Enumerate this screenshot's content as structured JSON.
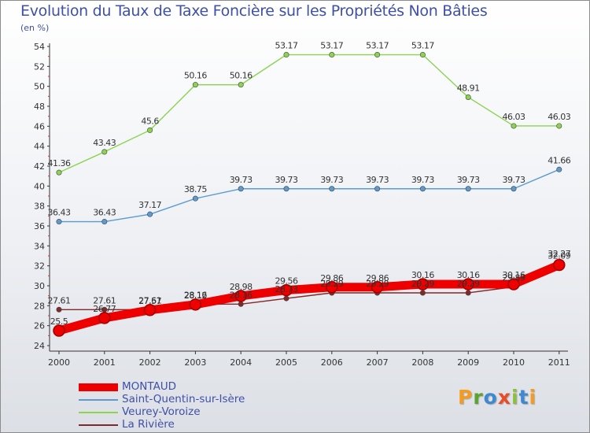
{
  "title": "Evolution du Taux de Taxe Foncière sur les Propriétés Non Bâties",
  "subtitle": "(en %)",
  "logo": {
    "text": "Proxiti",
    "letters": [
      "P",
      "r",
      "o",
      "x",
      "i",
      "t",
      "i"
    ],
    "colors": [
      "#f39c21",
      "#5aa32d",
      "#3f89cf",
      "#e94d28",
      "#8cbf3f",
      "#3f89cf",
      "#f39c21"
    ]
  },
  "chart_data": {
    "type": "line",
    "title": "Evolution du Taux de Taxe Foncière sur les Propriétés Non Bâties",
    "ylabel": "(en %)",
    "xlabel": "",
    "x": [
      "2000",
      "2001",
      "2002",
      "2003",
      "2004",
      "2005",
      "2006",
      "2007",
      "2008",
      "2009",
      "2010",
      "2011"
    ],
    "ylim": [
      24,
      54
    ],
    "yticks": [
      24,
      26,
      28,
      30,
      32,
      34,
      36,
      38,
      40,
      42,
      44,
      46,
      48,
      50,
      52,
      54
    ],
    "grid": false,
    "legend_position": "bottom-left",
    "series": [
      {
        "name": "MONTAUD",
        "color": "#ee0000",
        "values": [
          25.5,
          26.77,
          27.57,
          28.12,
          28.98,
          29.56,
          29.86,
          29.86,
          30.16,
          30.16,
          30.16,
          32.09
        ],
        "labels": [
          "25.5",
          "26.77",
          "27.57",
          "28.12",
          "28.98",
          "29.56",
          "29.86",
          "29.86",
          "30.16",
          "30.16",
          "30.16",
          "32.09"
        ]
      },
      {
        "name": "Saint-Quentin-sur-Isère",
        "color": "#5b9bd0",
        "values": [
          36.43,
          36.43,
          37.17,
          38.75,
          39.73,
          39.73,
          39.73,
          39.73,
          39.73,
          39.73,
          39.73,
          41.66
        ],
        "labels": [
          "36.43",
          "36.43",
          "37.17",
          "38.75",
          "39.73",
          "39.73",
          "39.73",
          "39.73",
          "39.73",
          "39.73",
          "39.73",
          "41.66"
        ]
      },
      {
        "name": "Veurey-Voroize",
        "color": "#8cd450",
        "values": [
          41.36,
          43.43,
          45.6,
          50.16,
          50.16,
          53.17,
          53.17,
          53.17,
          53.17,
          48.91,
          46.03,
          46.03
        ],
        "labels": [
          "41.36",
          "43.43",
          "45.6",
          "50.16",
          "50.16",
          "53.17",
          "53.17",
          "53.17",
          "53.17",
          "48.91",
          "46.03",
          "46.03"
        ]
      },
      {
        "name": "La Rivière",
        "color": "#7f2a2a",
        "values": [
          27.61,
          27.61,
          27.61,
          28.16,
          28.16,
          28.73,
          29.29,
          29.29,
          29.29,
          29.29,
          29.89,
          32.27
        ],
        "labels": [
          "27.61",
          "27.61",
          "27.61",
          "28.16",
          "28.16",
          "28.73",
          "29.29",
          "29.29",
          "29.29",
          "29.29",
          "29.89",
          "32.27"
        ]
      }
    ]
  }
}
